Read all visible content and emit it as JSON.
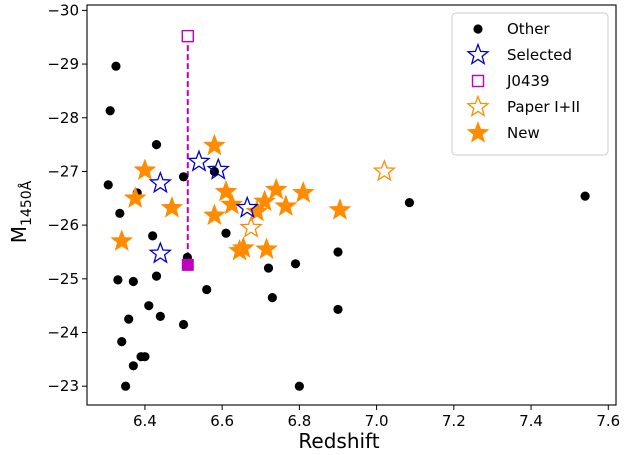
{
  "chart_data": {
    "type": "scatter",
    "xlabel": "Redshift",
    "ylabel": {
      "main": "M",
      "sub": "1450Å"
    },
    "xlim": [
      6.25,
      7.62
    ],
    "ylim": [
      -22.65,
      -30.1
    ],
    "y_inverted": true,
    "xticks": [
      "6.4",
      "6.6",
      "6.8",
      "7.0",
      "7.2",
      "7.4",
      "7.6"
    ],
    "yticks": [
      "−30",
      "−29",
      "−28",
      "−27",
      "−26",
      "−25",
      "−24",
      "−23"
    ],
    "grid": false,
    "legend": {
      "placement": "top-right",
      "entries": [
        {
          "label": "Other",
          "marker": "dot"
        },
        {
          "label": "Selected",
          "marker": "star-open-blue"
        },
        {
          "label": "J0439",
          "marker": "square-open-magenta"
        },
        {
          "label": "Paper I+II",
          "marker": "star-open-orange"
        },
        {
          "label": "New",
          "marker": "star-filled-orange"
        }
      ]
    },
    "colors": {
      "other": "#000000",
      "selected": "#0000cc",
      "j0439": "#bf00bf",
      "orange": "#ff8c00"
    },
    "series": [
      {
        "name": "Other",
        "points": [
          [
            6.305,
            -26.75
          ],
          [
            6.31,
            -28.13
          ],
          [
            6.325,
            -28.96
          ],
          [
            6.33,
            -24.98
          ],
          [
            6.335,
            -26.22
          ],
          [
            6.34,
            -23.83
          ],
          [
            6.35,
            -23.0
          ],
          [
            6.358,
            -24.25
          ],
          [
            6.37,
            -23.38
          ],
          [
            6.37,
            -24.95
          ],
          [
            6.38,
            -26.6
          ],
          [
            6.39,
            -23.55
          ],
          [
            6.4,
            -23.55
          ],
          [
            6.41,
            -24.5
          ],
          [
            6.42,
            -25.8
          ],
          [
            6.43,
            -25.05
          ],
          [
            6.43,
            -27.5
          ],
          [
            6.44,
            -24.3
          ],
          [
            6.5,
            -24.15
          ],
          [
            6.5,
            -26.9
          ],
          [
            6.51,
            -25.4
          ],
          [
            6.56,
            -24.8
          ],
          [
            6.58,
            -27.0
          ],
          [
            6.61,
            -25.85
          ],
          [
            6.72,
            -25.2
          ],
          [
            6.73,
            -24.65
          ],
          [
            6.79,
            -25.28
          ],
          [
            6.8,
            -23.0
          ],
          [
            6.9,
            -24.43
          ],
          [
            6.9,
            -25.5
          ],
          [
            7.085,
            -26.42
          ],
          [
            7.54,
            -26.54
          ]
        ]
      },
      {
        "name": "Selected",
        "points": [
          [
            6.44,
            -26.78
          ],
          [
            6.44,
            -25.47
          ],
          [
            6.54,
            -27.18
          ],
          [
            6.59,
            -27.03
          ],
          [
            6.665,
            -26.32
          ]
        ]
      },
      {
        "name": "Paper I+II",
        "points": [
          [
            6.675,
            -25.95
          ],
          [
            7.02,
            -27.0
          ]
        ]
      },
      {
        "name": "New",
        "points": [
          [
            6.34,
            -25.7
          ],
          [
            6.375,
            -26.5
          ],
          [
            6.4,
            -27.02
          ],
          [
            6.47,
            -26.32
          ],
          [
            6.58,
            -27.48
          ],
          [
            6.58,
            -26.18
          ],
          [
            6.61,
            -26.62
          ],
          [
            6.625,
            -26.38
          ],
          [
            6.645,
            -25.52
          ],
          [
            6.655,
            -25.57
          ],
          [
            6.69,
            -26.25
          ],
          [
            6.715,
            -25.55
          ],
          [
            6.71,
            -26.44
          ],
          [
            6.74,
            -26.66
          ],
          [
            6.765,
            -26.35
          ],
          [
            6.81,
            -26.6
          ],
          [
            6.905,
            -26.28
          ]
        ]
      },
      {
        "name": "J0439",
        "x": 6.511,
        "y_open": -29.52,
        "y_filled": -25.26
      }
    ]
  }
}
